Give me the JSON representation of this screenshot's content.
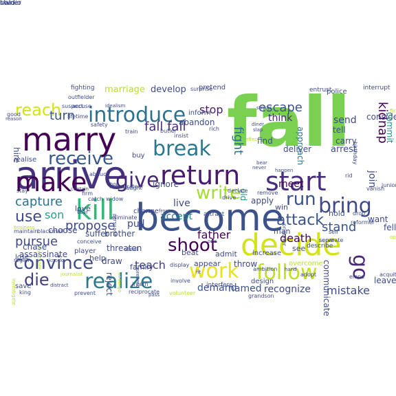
{
  "words": [
    {
      "text": "fall",
      "color": "#7ad151",
      "bold": true,
      "rotate": 0
    },
    {
      "text": "become",
      "color": "#3b528b",
      "bold": false,
      "rotate": 0
    },
    {
      "text": "arrive",
      "color": "#46337f",
      "bold": false,
      "rotate": 0
    },
    {
      "text": "marry",
      "color": "#440154",
      "bold": false,
      "rotate": 0
    },
    {
      "text": "decide",
      "color": "#d2e21b",
      "bold": false,
      "rotate": 0
    },
    {
      "text": "return",
      "color": "#481a6c",
      "bold": false,
      "rotate": 0
    },
    {
      "text": "start",
      "color": "#472f7d",
      "bold": false,
      "rotate": 0
    },
    {
      "text": "make",
      "color": "#440154",
      "bold": false,
      "rotate": 0
    },
    {
      "text": "kill",
      "color": "#35b779",
      "bold": false,
      "rotate": 0
    },
    {
      "text": "introduce",
      "color": "#2c728e",
      "bold": false,
      "rotate": 0
    },
    {
      "text": "break",
      "color": "#2a788e",
      "bold": false,
      "rotate": 0
    },
    {
      "text": "work",
      "color": "#e8e419",
      "bold": false,
      "rotate": 0
    },
    {
      "text": "follow",
      "color": "#c2df23",
      "bold": false,
      "rotate": 0
    },
    {
      "text": "write",
      "color": "#a5db36",
      "bold": false,
      "rotate": 0
    },
    {
      "text": "realize",
      "color": "#2a788e",
      "bold": false,
      "rotate": 0
    },
    {
      "text": "convince",
      "color": "#3e4a89",
      "bold": false,
      "rotate": 0
    },
    {
      "text": "bring",
      "color": "#3e4989",
      "bold": false,
      "rotate": 0
    },
    {
      "text": "give",
      "color": "#482677",
      "bold": false,
      "rotate": 0
    },
    {
      "text": "receive",
      "color": "#38588c",
      "bold": false,
      "rotate": 0
    },
    {
      "text": "shoot",
      "color": "#440154",
      "bold": false,
      "rotate": 0
    },
    {
      "text": "go",
      "color": "#482878",
      "bold": false,
      "rotate": 90
    },
    {
      "text": "use",
      "color": "#3e4989",
      "bold": false,
      "rotate": 0
    },
    {
      "text": "die",
      "color": "#433e85",
      "bold": false,
      "rotate": 0
    },
    {
      "text": "run",
      "color": "#3b528b",
      "bold": false,
      "rotate": 0
    },
    {
      "text": "reach",
      "color": "#d2e21b",
      "bold": false,
      "rotate": 0
    },
    {
      "text": "attack",
      "color": "#3b528b",
      "bold": false,
      "rotate": 0
    },
    {
      "text": "capture",
      "color": "#2c728e",
      "bold": false,
      "rotate": 0
    },
    {
      "text": "fall fall",
      "color": "#472c7a",
      "bold": false,
      "rotate": 0
    },
    {
      "text": "escape",
      "color": "#3b528b",
      "bold": false,
      "rotate": 0
    },
    {
      "text": "kidnap",
      "color": "#440154",
      "bold": false,
      "rotate": 90
    },
    {
      "text": "fight",
      "color": "#2c728e",
      "bold": false,
      "rotate": 90
    },
    {
      "text": "stop",
      "color": "#481a6c",
      "bold": false,
      "rotate": 0
    },
    {
      "text": "propose",
      "color": "#3e4a89",
      "bold": false,
      "rotate": 0
    },
    {
      "text": "pursue",
      "color": "#3e4a89",
      "bold": false,
      "rotate": 0
    },
    {
      "text": "teach",
      "color": "#433e85",
      "bold": false,
      "rotate": 0
    },
    {
      "text": "death",
      "color": "#440154",
      "bold": false,
      "rotate": 0
    },
    {
      "text": "father",
      "color": "#440154",
      "bold": false,
      "rotate": 0
    },
    {
      "text": "stand",
      "color": "#3b528b",
      "bold": false,
      "rotate": 0
    },
    {
      "text": "son",
      "color": "#20a386",
      "bold": false,
      "rotate": 0
    },
    {
      "text": "turn",
      "color": "#3b528b",
      "bold": false,
      "rotate": 0
    },
    {
      "text": "think",
      "color": "#482677",
      "bold": false,
      "rotate": 0
    },
    {
      "text": "join",
      "color": "#3e4a89",
      "bold": false,
      "rotate": 90
    },
    {
      "text": "mistake",
      "color": "#3e4a89",
      "bold": false,
      "rotate": 0
    },
    {
      "text": "demand",
      "color": "#3b528b",
      "bold": false,
      "rotate": 0
    },
    {
      "text": "named",
      "color": "#3b528b",
      "bold": false,
      "rotate": 0
    },
    {
      "text": "recognize",
      "color": "#3e4a89",
      "bold": false,
      "rotate": 0
    },
    {
      "text": "accept",
      "color": "#2a788e",
      "bold": false,
      "rotate": 0
    },
    {
      "text": "pull",
      "color": "#3e4a89",
      "bold": false,
      "rotate": 0
    },
    {
      "text": "live",
      "color": "#3e4a89",
      "bold": false,
      "rotate": 0
    },
    {
      "text": "meet",
      "color": "#440154",
      "bold": false,
      "rotate": 0
    },
    {
      "text": "send",
      "color": "#3e4a89",
      "bold": false,
      "rotate": 0
    },
    {
      "text": "tell",
      "color": "#3e4a89",
      "bold": false,
      "rotate": 0
    },
    {
      "text": "carry",
      "color": "#3e4a89",
      "bold": false,
      "rotate": 0
    },
    {
      "text": "arrest",
      "color": "#3e4a89",
      "bold": false,
      "rotate": 0
    },
    {
      "text": "find",
      "color": "#3e4a89",
      "bold": false,
      "rotate": 0
    },
    {
      "text": "deliver",
      "color": "#3e4a89",
      "bold": false,
      "rotate": 0
    },
    {
      "text": "approach",
      "color": "#2c728e",
      "bold": false,
      "rotate": 90
    },
    {
      "text": "consider",
      "color": "#3e4a89",
      "bold": false,
      "rotate": 0
    },
    {
      "text": "commit",
      "color": "#21918c",
      "bold": false,
      "rotate": 90
    },
    {
      "text": "old",
      "color": "#21918c",
      "bold": false,
      "rotate": 90
    },
    {
      "text": "apply",
      "color": "#3e4a89",
      "bold": false,
      "rotate": 0
    },
    {
      "text": "win",
      "color": "#3e4a89",
      "bold": false,
      "rotate": 0
    },
    {
      "text": "hold",
      "color": "#3e4a89",
      "bold": false,
      "rotate": 0
    },
    {
      "text": "want",
      "color": "#3e4a89",
      "bold": false,
      "rotate": 0
    },
    {
      "text": "fell",
      "color": "#3e4a89",
      "bold": false,
      "rotate": 0
    },
    {
      "text": "communicate",
      "color": "#3e4a89",
      "bold": false,
      "rotate": 90
    },
    {
      "text": "leave",
      "color": "#3e4a89",
      "bold": false,
      "rotate": 0
    },
    {
      "text": "man",
      "color": "#3e4a89",
      "bold": false,
      "rotate": 0
    },
    {
      "text": "see",
      "color": "#3e4a89",
      "bold": false,
      "rotate": 0
    },
    {
      "text": "throw",
      "color": "#3e4a89",
      "bold": false,
      "rotate": 0
    },
    {
      "text": "appear",
      "color": "#3e4a89",
      "bold": false,
      "rotate": 0
    },
    {
      "text": "admit",
      "color": "#3e4a89",
      "bold": false,
      "rotate": 0
    },
    {
      "text": "beat",
      "color": "#3e4a89",
      "bold": false,
      "rotate": 0
    },
    {
      "text": "draw",
      "color": "#3e4a89",
      "bold": false,
      "rotate": 0
    },
    {
      "text": "brother",
      "color": "#3e4a89",
      "bold": false,
      "rotate": 0
    },
    {
      "text": "threaten",
      "color": "#3e4a89",
      "bold": false,
      "rotate": 0
    },
    {
      "text": "suffer",
      "color": "#3e4a89",
      "bold": false,
      "rotate": 0
    },
    {
      "text": "choose",
      "color": "#3e4a89",
      "bold": false,
      "rotate": 0
    },
    {
      "text": "chase",
      "color": "#3e4a89",
      "bold": false,
      "rotate": 0
    },
    {
      "text": "assassinate",
      "color": "#3e4a89",
      "bold": false,
      "rotate": 0
    },
    {
      "text": "save",
      "color": "#3e4a89",
      "bold": false,
      "rotate": 0
    },
    {
      "text": "lose",
      "color": "#3e4a89",
      "bold": false,
      "rotate": 0
    },
    {
      "text": "marriage",
      "color": "#b5de2b",
      "bold": false,
      "rotate": 0
    },
    {
      "text": "develop",
      "color": "#3e4a89",
      "bold": false,
      "rotate": 0
    },
    {
      "text": "pretend",
      "color": "#3e4a89",
      "bold": false,
      "rotate": 0
    },
    {
      "text": "abandon",
      "color": "#3e4a89",
      "bold": false,
      "rotate": 0
    },
    {
      "text": "inform",
      "color": "#3e4a89",
      "bold": false,
      "rotate": 0
    },
    {
      "text": "ignore",
      "color": "#3e4a89",
      "bold": false,
      "rotate": 0
    },
    {
      "text": "family",
      "color": "#3e4a89",
      "bold": false,
      "rotate": 0
    },
    {
      "text": "buy",
      "color": "#3e4a89",
      "bold": false,
      "rotate": 0
    },
    {
      "text": "hire",
      "color": "#3e4a89",
      "bold": false,
      "rotate": 90
    },
    {
      "text": "realise",
      "color": "#3e4a89",
      "bold": false,
      "rotate": 0
    },
    {
      "text": "reject",
      "color": "#3e4a89",
      "bold": false,
      "rotate": 90
    },
    {
      "text": "police",
      "color": "#3e4a89",
      "bold": false,
      "rotate": 0
    },
    {
      "text": "change",
      "color": "#3e4a89",
      "bold": false,
      "rotate": 0
    },
    {
      "text": "attract",
      "color": "#3e4a89",
      "bold": false,
      "rotate": 0
    },
    {
      "text": "help",
      "color": "#3e4a89",
      "bold": false,
      "rotate": 0
    },
    {
      "text": "player",
      "color": "#3e4a89",
      "bold": false,
      "rotate": 0
    },
    {
      "text": "love",
      "color": "#3e4a89",
      "bold": false,
      "rotate": 0
    },
    {
      "text": "overcome",
      "color": "#b5de2b",
      "bold": false,
      "rotate": 0
    },
    {
      "text": "increase",
      "color": "#3e4a89",
      "bold": false,
      "rotate": 0
    },
    {
      "text": "design",
      "color": "#3e4a89",
      "bold": false,
      "rotate": 0
    },
    {
      "text": "describe",
      "color": "#3e4a89",
      "bold": false,
      "rotate": 0
    },
    {
      "text": "interfere",
      "color": "#3e4a89",
      "bold": false,
      "rotate": 0
    },
    {
      "text": "fighting",
      "color": "#3e4a89",
      "bold": false,
      "rotate": 0
    },
    {
      "text": "outfielder",
      "color": "#3e4a89",
      "bold": false,
      "rotate": 0
    },
    {
      "text": "suspect",
      "color": "#3e4a89",
      "bold": false,
      "rotate": 0
    },
    {
      "text": "accuse",
      "color": "#3e4a89",
      "bold": false,
      "rotate": 0
    },
    {
      "text": "idealism",
      "color": "#3e4a89",
      "bold": false,
      "rotate": 0
    },
    {
      "text": "surprise",
      "color": "#3e4a89",
      "bold": false,
      "rotate": 0
    },
    {
      "text": "interrupt",
      "color": "#3e4a89",
      "bold": false,
      "rotate": 0
    },
    {
      "text": "entrust",
      "color": "#3e4a89",
      "bold": false,
      "rotate": 0
    },
    {
      "text": "first",
      "color": "#b5de2b",
      "bold": false,
      "rotate": 0
    },
    {
      "text": "birthday",
      "color": "#3e4a89",
      "bold": false,
      "rotate": 90
    },
    {
      "text": "lifetime",
      "color": "#3e4a89",
      "bold": false,
      "rotate": 0
    },
    {
      "text": "safety",
      "color": "#3e4a89",
      "bold": false,
      "rotate": 0
    },
    {
      "text": "train",
      "color": "#3e4a89",
      "bold": false,
      "rotate": 0
    },
    {
      "text": "butler",
      "color": "#3e4a89",
      "bold": false,
      "rotate": 0
    },
    {
      "text": "insist",
      "color": "#3e4a89",
      "bold": false,
      "rotate": 0
    },
    {
      "text": "rich",
      "color": "#3e4a89",
      "bold": false,
      "rotate": 0
    },
    {
      "text": "abduct",
      "color": "#3e4a89",
      "bold": false,
      "rotate": 0
    },
    {
      "text": "restaurateur",
      "color": "#3e4a89",
      "bold": false,
      "rotate": 0
    },
    {
      "text": "caught",
      "color": "#3e4a89",
      "bold": false,
      "rotate": 0
    },
    {
      "text": "firm",
      "color": "#3e4a89",
      "bold": false,
      "rotate": 0
    },
    {
      "text": "widow",
      "color": "#3e4a89",
      "bold": false,
      "rotate": 0
    },
    {
      "text": "drive",
      "color": "#3e4a89",
      "bold": false,
      "rotate": 0
    },
    {
      "text": "declare",
      "color": "#3e4a89",
      "bold": false,
      "rotate": 0
    },
    {
      "text": "remove",
      "color": "#3e4a89",
      "bold": false,
      "rotate": 0
    },
    {
      "text": "vanish",
      "color": "#3e4a89",
      "bold": false,
      "rotate": 0
    },
    {
      "text": "junior",
      "color": "#3e4a89",
      "bold": false,
      "rotate": 0
    },
    {
      "text": "stay",
      "color": "#3e4a89",
      "bold": false,
      "rotate": 0
    },
    {
      "text": "tear",
      "color": "#3e4a89",
      "bold": false,
      "rotate": 0
    },
    {
      "text": "eliminate",
      "color": "#3e4a89",
      "bold": false,
      "rotate": 0
    },
    {
      "text": "drop",
      "color": "#3e4a89",
      "bold": false,
      "rotate": 0
    },
    {
      "text": "reformer",
      "color": "#3e4a89",
      "bold": false,
      "rotate": 0
    },
    {
      "text": "maintain",
      "color": "#3e4a89",
      "bold": false,
      "rotate": 0
    },
    {
      "text": "blackmail",
      "color": "#3e4a89",
      "bold": false,
      "rotate": 0
    },
    {
      "text": "catch",
      "color": "#3e4a89",
      "bold": false,
      "rotate": 0
    },
    {
      "text": "prisoner",
      "color": "#3e4a89",
      "bold": false,
      "rotate": 90
    },
    {
      "text": "separate",
      "color": "#3e4a89",
      "bold": false,
      "rotate": 0
    },
    {
      "text": "serve",
      "color": "#3e4a89",
      "bold": false,
      "rotate": 0
    },
    {
      "text": "self",
      "color": "#3e4a89",
      "bold": false,
      "rotate": 0
    },
    {
      "text": "conceive",
      "color": "#3e4a89",
      "bold": false,
      "rotate": 0
    },
    {
      "text": "steal",
      "color": "#3e4a89",
      "bold": false,
      "rotate": 0
    },
    {
      "text": "ambition",
      "color": "#3e4a89",
      "bold": false,
      "rotate": 0
    },
    {
      "text": "adopt",
      "color": "#3e4a89",
      "bold": false,
      "rotate": 0
    },
    {
      "text": "elope",
      "color": "#3e4a89",
      "bold": false,
      "rotate": 0
    },
    {
      "text": "acquit",
      "color": "#3e4a89",
      "bold": false,
      "rotate": 0
    },
    {
      "text": "display",
      "color": "#3e4a89",
      "bold": false,
      "rotate": 0
    },
    {
      "text": "king",
      "color": "#3e4a89",
      "bold": false,
      "rotate": 0
    },
    {
      "text": "prevent",
      "color": "#3e4a89",
      "bold": false,
      "rotate": 0
    },
    {
      "text": "reciprocate",
      "color": "#3e4a89",
      "bold": false,
      "rotate": 0
    },
    {
      "text": "volunteer",
      "color": "#b5de2b",
      "bold": false,
      "rotate": 0
    },
    {
      "text": "involve",
      "color": "#3e4a89",
      "bold": false,
      "rotate": 0
    },
    {
      "text": "intern",
      "color": "#3e4a89",
      "bold": false,
      "rotate": 0
    },
    {
      "text": "grandson",
      "color": "#3e4a89",
      "bold": false,
      "rotate": 0
    },
    {
      "text": "regain",
      "color": "#3e4a89",
      "bold": false,
      "rotate": 0
    },
    {
      "text": "reason",
      "color": "#3e4a89",
      "bold": false,
      "rotate": 0
    },
    {
      "text": "good",
      "color": "#3e4a89",
      "bold": false,
      "rotate": 0
    },
    {
      "text": "rid",
      "color": "#3e4a89",
      "bold": false,
      "rotate": 0
    },
    {
      "text": "operator",
      "color": "#b5de2b",
      "bold": false,
      "rotate": 0
    },
    {
      "text": "hand",
      "color": "#3e4a89",
      "bold": false,
      "rotate": 0
    },
    {
      "text": "evacuate",
      "color": "#b5de2b",
      "bold": false,
      "rotate": 90
    },
    {
      "text": "knock",
      "color": "#3e4a89",
      "bold": false,
      "rotate": 0
    },
    {
      "text": "investigate",
      "color": "#b5de2b",
      "bold": false,
      "rotate": 90
    },
    {
      "text": "distract",
      "color": "#3e4a89",
      "bold": false,
      "rotate": 0
    },
    {
      "text": "business",
      "color": "#b5de2b",
      "bold": false,
      "rotate": 0
    },
    {
      "text": "journalist",
      "color": "#b5de2b",
      "bold": false,
      "rotate": 0
    },
    {
      "text": "undergo",
      "color": "#b5de2b",
      "bold": false,
      "rotate": 90
    },
    {
      "text": "persuade",
      "color": "#3e4a89",
      "bold": false,
      "rotate": 90
    },
    {
      "text": "fit",
      "color": "#3e4a89",
      "bold": false,
      "rotate": 0
    },
    {
      "text": "contain",
      "color": "#3e4a89",
      "bold": false,
      "rotate": 0
    },
    {
      "text": "hop",
      "color": "#3e4a89",
      "bold": false,
      "rotate": 0
    },
    {
      "text": "front",
      "color": "#3e4a89",
      "bold": false,
      "rotate": 0
    },
    {
      "text": "striker",
      "color": "#3e4a89",
      "bold": false,
      "rotate": 0
    },
    {
      "text": "diner",
      "color": "#3e4a89",
      "bold": false,
      "rotate": 0
    },
    {
      "text": "slap",
      "color": "#3e4a89",
      "bold": false,
      "rotate": 0
    },
    {
      "text": "bear",
      "color": "#3e4a89",
      "bold": false,
      "rotate": 0
    },
    {
      "text": "one",
      "color": "#3e4a89",
      "bold": false,
      "rotate": 0
    },
    {
      "text": "effect",
      "color": "#b5de2b",
      "bold": false,
      "rotate": 0
    },
    {
      "text": "never",
      "color": "#3e4a89",
      "bold": false,
      "rotate": 0
    },
    {
      "text": "pass",
      "color": "#3e4a89",
      "bold": false,
      "rotate": 0
    },
    {
      "text": "present",
      "color": "#3e4a89",
      "bold": false,
      "rotate": 90
    },
    {
      "text": "happen",
      "color": "#3e4a89",
      "bold": false,
      "rotate": 0
    },
    {
      "text": "owner",
      "color": "#3e4a89",
      "bold": false,
      "rotate": 0
    },
    {
      "text": "studio",
      "color": "#3e4a89",
      "bold": false,
      "rotate": 0
    },
    {
      "text": "lower",
      "color": "#3e4a89",
      "bold": false,
      "rotate": 90
    },
    {
      "text": "hold",
      "color": "#3e4a89",
      "bold": false,
      "rotate": 0
    }
  ]
}
